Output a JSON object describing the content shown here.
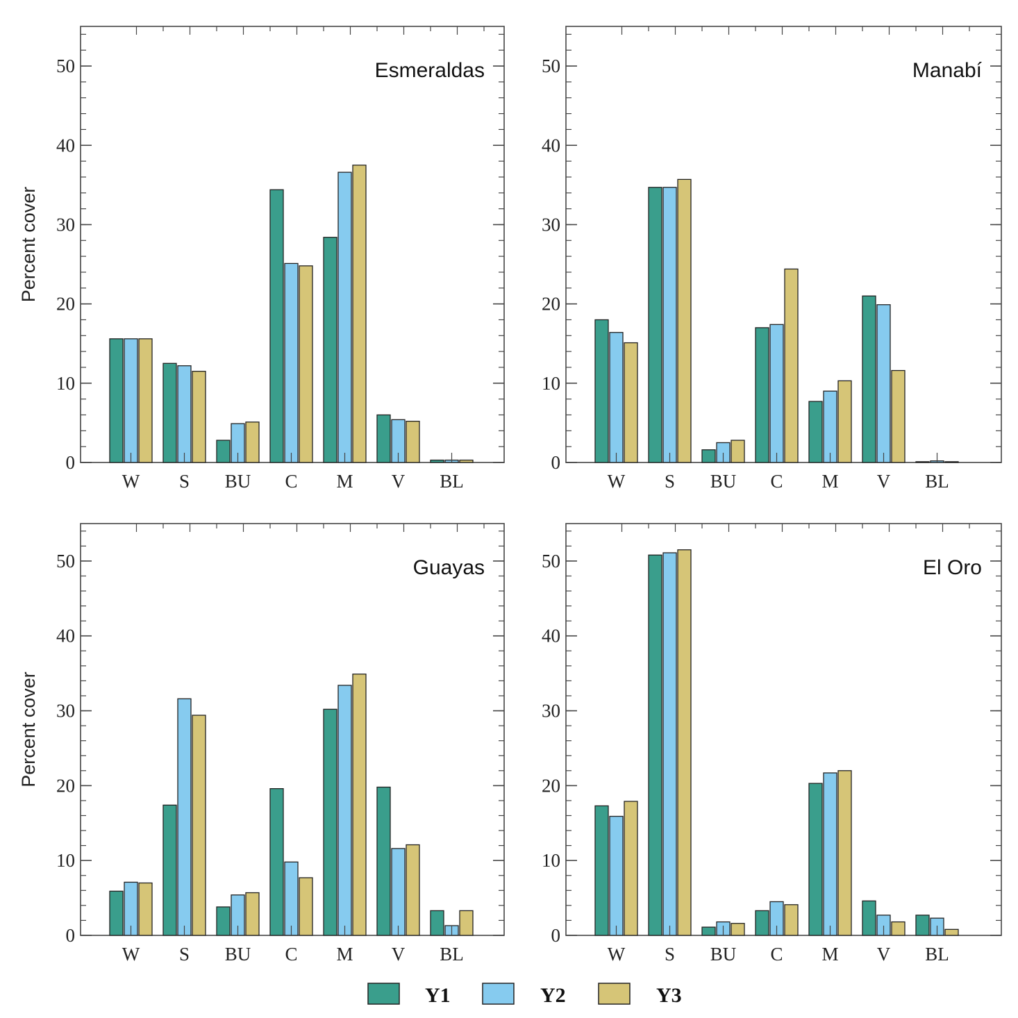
{
  "chart_data": [
    {
      "type": "bar",
      "title": "Esmeraldas",
      "ylabel": "Percent cover",
      "xlabel": "",
      "ylim": [
        0,
        55
      ],
      "yticks": [
        0,
        10,
        20,
        30,
        40,
        50
      ],
      "categories": [
        "W",
        "S",
        "BU",
        "C",
        "M",
        "V",
        "BL"
      ],
      "series": [
        {
          "name": "Y1",
          "values": [
            15.6,
            12.5,
            2.8,
            34.4,
            28.4,
            6.0,
            0.3
          ]
        },
        {
          "name": "Y2",
          "values": [
            15.6,
            12.2,
            4.9,
            25.1,
            36.6,
            5.4,
            0.3
          ]
        },
        {
          "name": "Y3",
          "values": [
            15.6,
            11.5,
            5.1,
            24.8,
            37.5,
            5.2,
            0.3
          ]
        }
      ]
    },
    {
      "type": "bar",
      "title": "Manabí",
      "ylabel": "",
      "xlabel": "",
      "ylim": [
        0,
        55
      ],
      "yticks": [
        0,
        10,
        20,
        30,
        40,
        50
      ],
      "categories": [
        "W",
        "S",
        "BU",
        "C",
        "M",
        "V",
        "BL"
      ],
      "series": [
        {
          "name": "Y1",
          "values": [
            18.0,
            34.7,
            1.6,
            17.0,
            7.7,
            21.0,
            0.1
          ]
        },
        {
          "name": "Y2",
          "values": [
            16.4,
            34.7,
            2.5,
            17.4,
            9.0,
            19.9,
            0.2
          ]
        },
        {
          "name": "Y3",
          "values": [
            15.1,
            35.7,
            2.8,
            24.4,
            10.3,
            11.6,
            0.1
          ]
        }
      ]
    },
    {
      "type": "bar",
      "title": "Guayas",
      "ylabel": "Percent cover",
      "xlabel": "",
      "ylim": [
        0,
        55
      ],
      "yticks": [
        0,
        10,
        20,
        30,
        40,
        50
      ],
      "categories": [
        "W",
        "S",
        "BU",
        "C",
        "M",
        "V",
        "BL"
      ],
      "series": [
        {
          "name": "Y1",
          "values": [
            5.9,
            17.4,
            3.8,
            19.6,
            30.2,
            19.8,
            3.3
          ]
        },
        {
          "name": "Y2",
          "values": [
            7.1,
            31.6,
            5.4,
            9.8,
            33.4,
            11.6,
            1.3
          ]
        },
        {
          "name": "Y3",
          "values": [
            7.0,
            29.4,
            5.7,
            7.7,
            34.9,
            12.1,
            3.3
          ]
        }
      ]
    },
    {
      "type": "bar",
      "title": "El Oro",
      "ylabel": "",
      "xlabel": "",
      "ylim": [
        0,
        55
      ],
      "yticks": [
        0,
        10,
        20,
        30,
        40,
        50
      ],
      "categories": [
        "W",
        "S",
        "BU",
        "C",
        "M",
        "V",
        "BL"
      ],
      "series": [
        {
          "name": "Y1",
          "values": [
            17.3,
            50.8,
            1.1,
            3.3,
            20.3,
            4.6,
            2.7
          ]
        },
        {
          "name": "Y2",
          "values": [
            15.9,
            51.1,
            1.8,
            4.5,
            21.7,
            2.7,
            2.3
          ]
        },
        {
          "name": "Y3",
          "values": [
            17.9,
            51.5,
            1.6,
            4.1,
            22.0,
            1.8,
            0.8
          ]
        }
      ]
    }
  ],
  "legend": {
    "placement": "bottom-center",
    "items": [
      {
        "label": "Y1",
        "color": "#3a9e8c"
      },
      {
        "label": "Y2",
        "color": "#86cbef"
      },
      {
        "label": "Y3",
        "color": "#d6c577"
      }
    ]
  },
  "colors": {
    "Y1": "#3a9e8c",
    "Y2": "#86cbef",
    "Y3": "#d6c577",
    "axis": "#444444",
    "bar_edge": "#222222"
  }
}
